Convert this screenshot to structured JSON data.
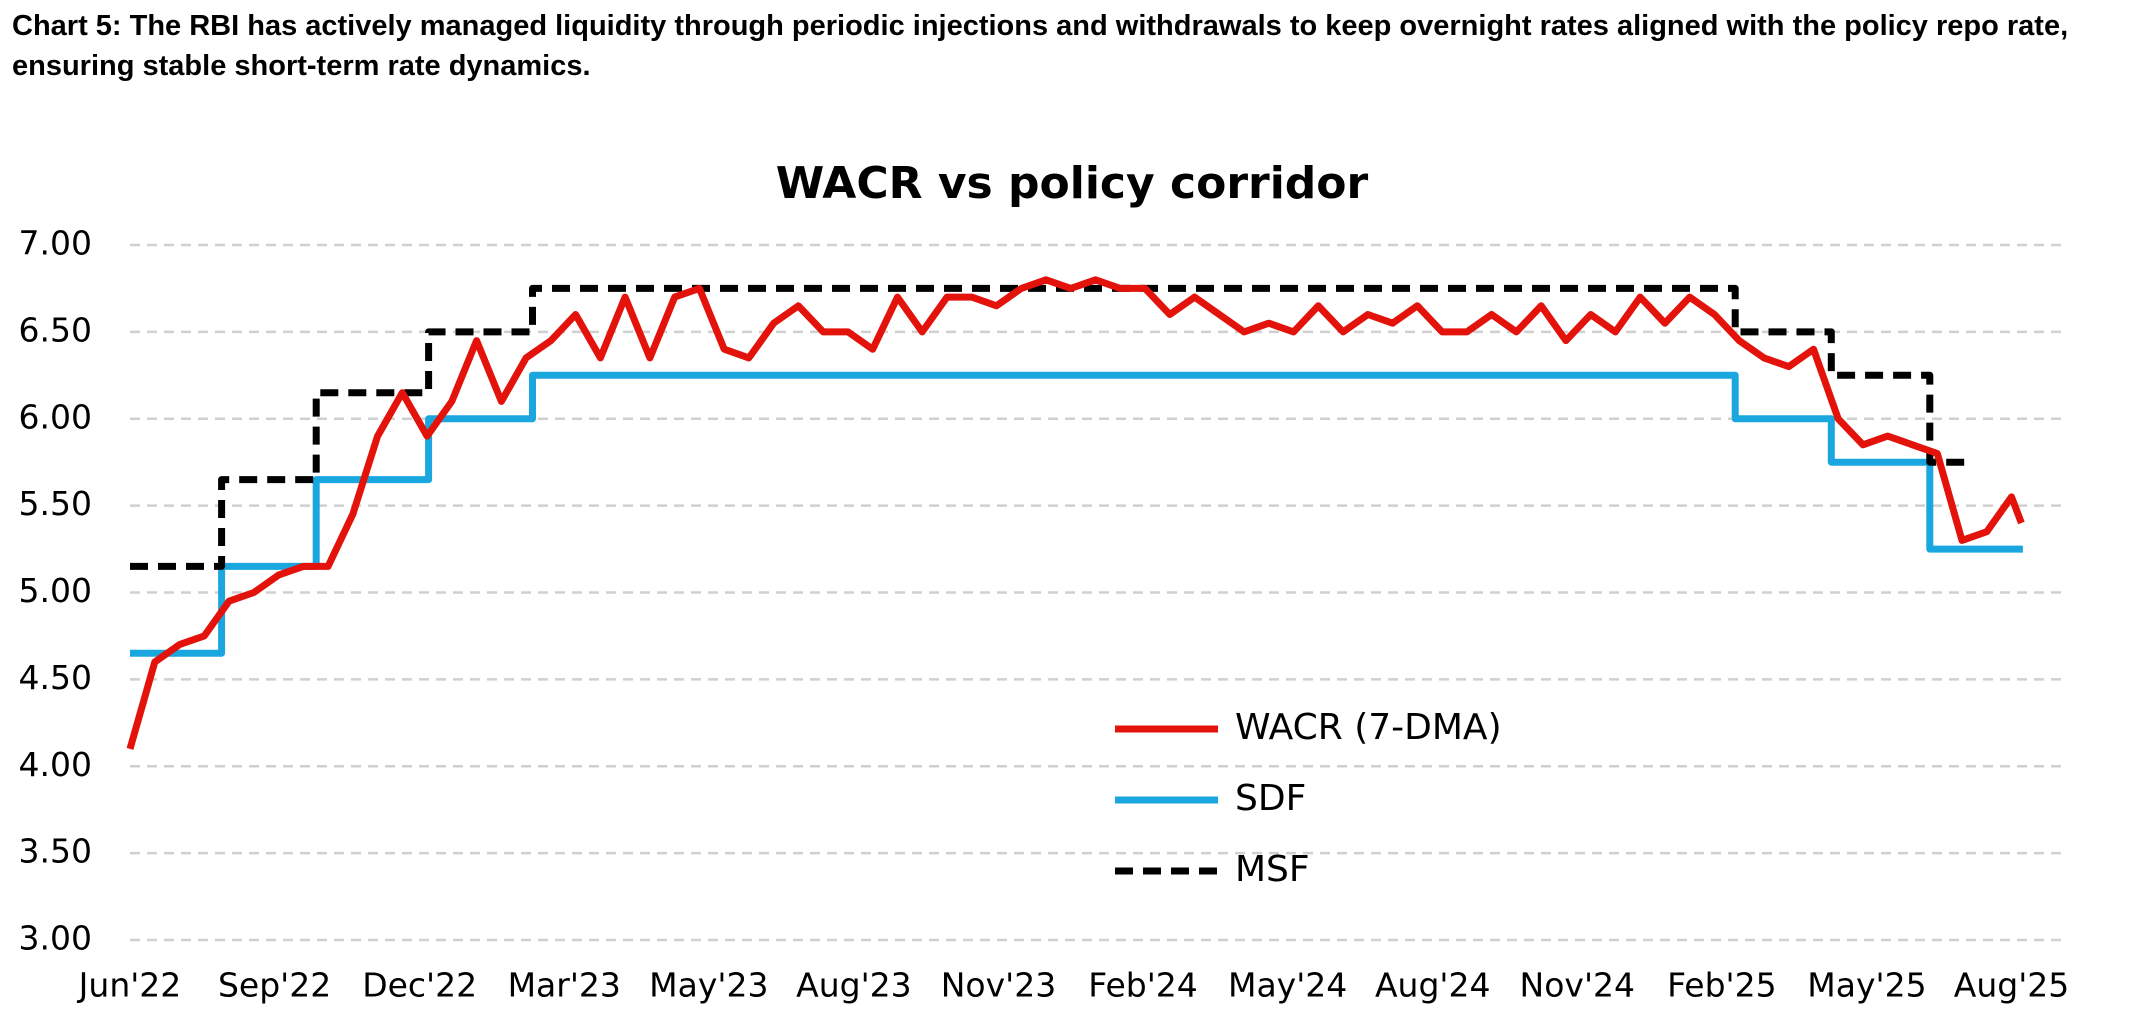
{
  "caption": "Chart 5: The RBI has actively managed liquidity through periodic injections and withdrawals to keep overnight rates aligned with the policy repo rate, ensuring stable short-term rate dynamics.",
  "chart_data": {
    "type": "line",
    "title": "WACR vs policy corridor",
    "xlim": [
      0,
      39.1
    ],
    "xticks": [
      {
        "value": 0,
        "label": "Jun'22"
      },
      {
        "value": 2.92,
        "label": "Sep'22"
      },
      {
        "value": 5.85,
        "label": "Dec'22"
      },
      {
        "value": 8.77,
        "label": "Mar'23"
      },
      {
        "value": 11.69,
        "label": "May'23"
      },
      {
        "value": 14.62,
        "label": "Aug'23"
      },
      {
        "value": 17.54,
        "label": "Nov'23"
      },
      {
        "value": 20.46,
        "label": "Feb'24"
      },
      {
        "value": 23.38,
        "label": "May'24"
      },
      {
        "value": 26.31,
        "label": "Aug'24"
      },
      {
        "value": 29.23,
        "label": "Nov'24"
      },
      {
        "value": 32.15,
        "label": "Feb'25"
      },
      {
        "value": 35.08,
        "label": "May'25"
      },
      {
        "value": 38,
        "label": "Aug'25"
      }
    ],
    "ylim": [
      3,
      7
    ],
    "yticks": [
      {
        "value": 3,
        "label": "3.00"
      },
      {
        "value": 3.5,
        "label": "3.50"
      },
      {
        "value": 4,
        "label": "4.00"
      },
      {
        "value": 4.5,
        "label": "4.50"
      },
      {
        "value": 5,
        "label": "5.00"
      },
      {
        "value": 5.5,
        "label": "5.50"
      },
      {
        "value": 6,
        "label": "6.00"
      },
      {
        "value": 6.5,
        "label": "6.50"
      },
      {
        "value": 7,
        "label": "7.00"
      }
    ],
    "grid": true,
    "series": [
      {
        "name": "WACR (7-DMA)",
        "color": "#e3120b",
        "dashed": false,
        "x": [
          0,
          0.5,
          1,
          1.5,
          2,
          2.5,
          3,
          3.5,
          4,
          4.5,
          5,
          5.5,
          6,
          6.5,
          7,
          7.5,
          8,
          8.5,
          9,
          9.5,
          10,
          10.5,
          11,
          11.5,
          12,
          12.5,
          13,
          13.5,
          14,
          14.5,
          15,
          15.5,
          16,
          16.5,
          17,
          17.5,
          18,
          18.5,
          19,
          19.5,
          20,
          20.5,
          21,
          21.5,
          22,
          22.5,
          23,
          23.5,
          24,
          24.5,
          25,
          25.5,
          26,
          26.5,
          27,
          27.5,
          28,
          28.5,
          29,
          29.5,
          30,
          30.5,
          31,
          31.5,
          32,
          32.5,
          33,
          33.5,
          34,
          34.5,
          35,
          35.5,
          36,
          36.5,
          37,
          37.5,
          38,
          38.2
        ],
        "values": [
          4.1,
          4.6,
          4.7,
          4.75,
          4.95,
          5.0,
          5.1,
          5.15,
          5.15,
          5.45,
          5.9,
          6.15,
          5.9,
          6.1,
          6.45,
          6.1,
          6.35,
          6.45,
          6.6,
          6.35,
          6.7,
          6.35,
          6.7,
          6.75,
          6.4,
          6.35,
          6.55,
          6.65,
          6.5,
          6.5,
          6.4,
          6.7,
          6.5,
          6.7,
          6.7,
          6.65,
          6.75,
          6.8,
          6.75,
          6.8,
          6.75,
          6.75,
          6.6,
          6.7,
          6.6,
          6.5,
          6.55,
          6.5,
          6.65,
          6.5,
          6.6,
          6.55,
          6.65,
          6.5,
          6.5,
          6.6,
          6.5,
          6.65,
          6.45,
          6.6,
          6.5,
          6.7,
          6.55,
          6.7,
          6.6,
          6.45,
          6.35,
          6.3,
          6.4,
          6.0,
          5.85,
          5.9,
          5.85,
          5.8,
          5.3,
          5.35,
          5.55,
          5.4
        ]
      },
      {
        "name": "SDF",
        "color": "#1aa7e0",
        "dashed": false,
        "x": [
          0,
          1.85,
          1.85,
          3.76,
          3.76,
          6.03,
          6.03,
          8.13,
          8.13,
          32.42,
          32.42,
          34.36,
          34.36,
          36.35,
          36.35,
          38.23
        ],
        "values": [
          4.65,
          4.65,
          5.15,
          5.15,
          5.65,
          5.65,
          6,
          6,
          6.25,
          6.25,
          6,
          6,
          5.75,
          5.75,
          5.25,
          5.25
        ]
      },
      {
        "name": "MSF",
        "color": "#000000",
        "dashed": true,
        "x": [
          0,
          1.85,
          1.85,
          3.76,
          3.76,
          6.03,
          6.03,
          8.13,
          8.13,
          32.42,
          32.42,
          34.36,
          34.36,
          36.35,
          36.35,
          37.17
        ],
        "values": [
          5.15,
          5.15,
          5.65,
          5.65,
          6.15,
          6.15,
          6.5,
          6.5,
          6.75,
          6.75,
          6.5,
          6.5,
          6.25,
          6.25,
          5.75,
          5.75
        ]
      }
    ]
  }
}
